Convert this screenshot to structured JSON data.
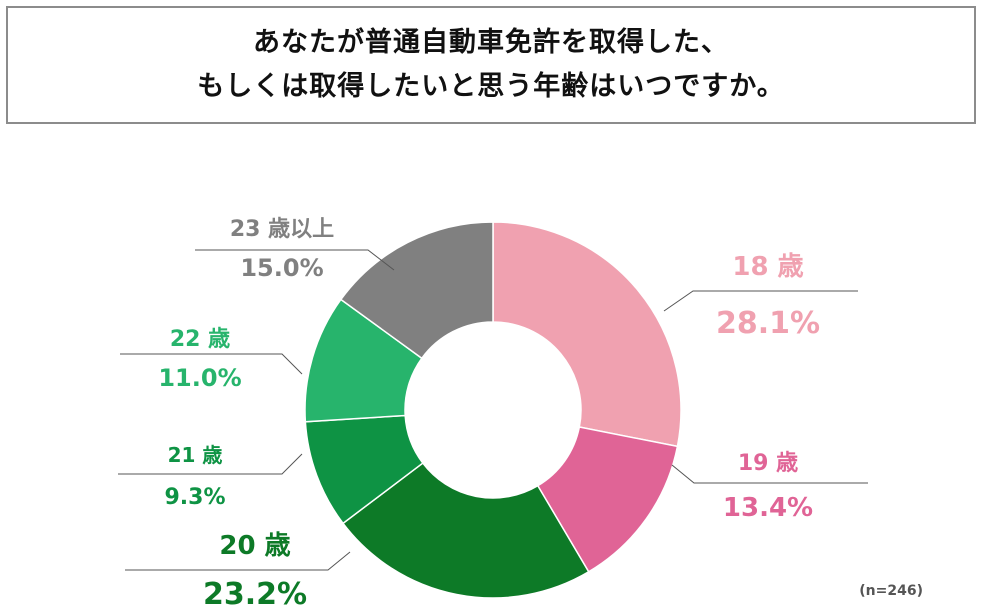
{
  "title": {
    "line1": "あなたが普通自動車免許を取得した、",
    "line2": "もしくは取得したいと思う年齢はいつですか。"
  },
  "sample_size": "(n=246)",
  "chart_data": {
    "type": "donut",
    "title": "あなたが普通自動車免許を取得した、もしくは取得したいと思う年齢はいつですか。",
    "unit": "%",
    "sample_size": "(n=246)",
    "slices": [
      {
        "label": "18 歳",
        "value": 28.1,
        "value_text": "28.1%",
        "color": "#f0a1b0"
      },
      {
        "label": "19 歳",
        "value": 13.4,
        "value_text": "13.4%",
        "color": "#e06496"
      },
      {
        "label": "20 歳",
        "value": 23.2,
        "value_text": "23.2%",
        "color": "#0d7a27"
      },
      {
        "label": "21 歳",
        "value": 9.3,
        "value_text": "9.3%",
        "color": "#0e9344"
      },
      {
        "label": "22 歳",
        "value": 11.0,
        "value_text": "11.0%",
        "color": "#27b46c"
      },
      {
        "label": "23 歳以上",
        "value": 15.0,
        "value_text": "15.0%",
        "color": "#808080"
      }
    ]
  }
}
